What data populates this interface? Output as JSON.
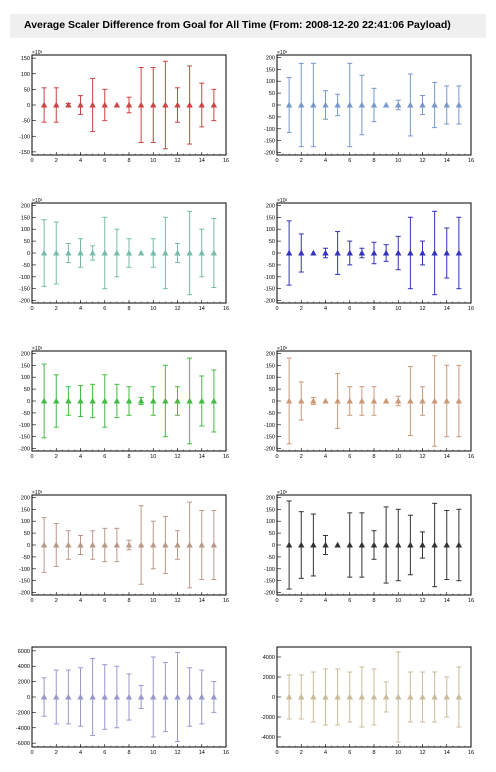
{
  "title": "Average Scaler Difference from Goal for All Time (From: 2008-12-20 22:41:06 Payload)",
  "chart_data": [
    {
      "type": "scatter",
      "color": "#cc4444",
      "exponent": "×10³",
      "xlim": [
        0,
        16
      ],
      "ylim": [
        -160,
        160
      ],
      "xticks": [
        0,
        2,
        4,
        6,
        8,
        10,
        12,
        14,
        16
      ],
      "yticks": [
        -150,
        -100,
        -50,
        0,
        50,
        100,
        150
      ],
      "x": [
        1,
        2,
        3,
        4,
        5,
        6,
        7,
        8,
        9,
        10,
        11,
        12,
        13,
        14,
        15
      ],
      "y": [
        0,
        0,
        0,
        0,
        0,
        0,
        0,
        0,
        0,
        0,
        0,
        0,
        0,
        0,
        0
      ],
      "err": [
        55,
        55,
        5,
        30,
        85,
        50,
        0,
        25,
        120,
        120,
        140,
        55,
        125,
        70,
        50
      ]
    },
    {
      "type": "scatter",
      "color": "#7799cc",
      "exponent": "×10³",
      "xlim": [
        0,
        16
      ],
      "ylim": [
        -210,
        210
      ],
      "xticks": [
        0,
        2,
        4,
        6,
        8,
        10,
        12,
        14,
        16
      ],
      "yticks": [
        -200,
        -150,
        -100,
        -50,
        0,
        50,
        100,
        150,
        200
      ],
      "x": [
        1,
        2,
        3,
        4,
        5,
        6,
        7,
        8,
        9,
        10,
        11,
        12,
        13,
        14,
        15
      ],
      "y": [
        0,
        0,
        0,
        0,
        0,
        0,
        0,
        0,
        0,
        0,
        0,
        0,
        0,
        0,
        0
      ],
      "err": [
        115,
        175,
        175,
        60,
        45,
        175,
        125,
        70,
        0,
        20,
        130,
        40,
        95,
        80,
        80
      ]
    },
    {
      "type": "scatter",
      "color": "#77bbaa",
      "exponent": "×10³",
      "xlim": [
        0,
        16
      ],
      "ylim": [
        -210,
        210
      ],
      "xticks": [
        0,
        2,
        4,
        6,
        8,
        10,
        12,
        14,
        16
      ],
      "yticks": [
        -200,
        -150,
        -100,
        -50,
        0,
        50,
        100,
        150,
        200
      ],
      "x": [
        1,
        2,
        3,
        4,
        5,
        6,
        7,
        8,
        9,
        10,
        11,
        12,
        13,
        14,
        15
      ],
      "y": [
        0,
        0,
        0,
        0,
        0,
        0,
        0,
        0,
        0,
        0,
        0,
        0,
        0,
        0,
        0
      ],
      "err": [
        140,
        130,
        40,
        60,
        30,
        150,
        100,
        60,
        0,
        60,
        150,
        40,
        175,
        100,
        145
      ]
    },
    {
      "type": "scatter",
      "color": "#3333bb",
      "exponent": "×10³",
      "xlim": [
        0,
        16
      ],
      "ylim": [
        -210,
        210
      ],
      "xticks": [
        0,
        2,
        4,
        6,
        8,
        10,
        12,
        14,
        16
      ],
      "yticks": [
        -200,
        -150,
        -100,
        -50,
        0,
        50,
        100,
        150,
        200
      ],
      "x": [
        1,
        2,
        3,
        4,
        5,
        6,
        7,
        8,
        9,
        10,
        11,
        12,
        13,
        14,
        15
      ],
      "y": [
        0,
        0,
        0,
        0,
        0,
        0,
        0,
        0,
        0,
        0,
        0,
        0,
        0,
        0,
        0
      ],
      "err": [
        135,
        80,
        0,
        20,
        90,
        50,
        20,
        45,
        35,
        70,
        150,
        50,
        175,
        105,
        150
      ]
    },
    {
      "type": "scatter",
      "color": "#44bb44",
      "exponent": "×10³",
      "xlim": [
        0,
        16
      ],
      "ylim": [
        -210,
        210
      ],
      "xticks": [
        0,
        2,
        4,
        6,
        8,
        10,
        12,
        14,
        16
      ],
      "yticks": [
        -200,
        -150,
        -100,
        -50,
        0,
        50,
        100,
        150,
        200
      ],
      "x": [
        1,
        2,
        3,
        4,
        5,
        6,
        7,
        8,
        9,
        10,
        11,
        12,
        13,
        14,
        15
      ],
      "y": [
        0,
        0,
        0,
        0,
        0,
        0,
        0,
        0,
        0,
        0,
        0,
        0,
        0,
        0,
        0
      ],
      "err": [
        155,
        110,
        60,
        65,
        70,
        110,
        70,
        60,
        15,
        60,
        150,
        60,
        180,
        105,
        130
      ]
    },
    {
      "type": "scatter",
      "color": "#cc9977",
      "exponent": "×10³",
      "xlim": [
        0,
        16
      ],
      "ylim": [
        -210,
        210
      ],
      "xticks": [
        0,
        2,
        4,
        6,
        8,
        10,
        12,
        14,
        16
      ],
      "yticks": [
        -200,
        -150,
        -100,
        -50,
        0,
        50,
        100,
        150,
        200
      ],
      "x": [
        1,
        2,
        3,
        4,
        5,
        6,
        7,
        8,
        9,
        10,
        11,
        12,
        13,
        14,
        15
      ],
      "y": [
        0,
        0,
        0,
        0,
        0,
        0,
        0,
        0,
        0,
        0,
        0,
        0,
        0,
        0,
        0
      ],
      "err": [
        180,
        80,
        15,
        0,
        115,
        60,
        60,
        60,
        0,
        20,
        145,
        60,
        190,
        150,
        150
      ]
    },
    {
      "type": "scatter",
      "color": "#bb9988",
      "exponent": "×10³",
      "xlim": [
        0,
        16
      ],
      "ylim": [
        -210,
        210
      ],
      "xticks": [
        0,
        2,
        4,
        6,
        8,
        10,
        12,
        14,
        16
      ],
      "yticks": [
        -200,
        -150,
        -100,
        -50,
        0,
        50,
        100,
        150,
        200
      ],
      "x": [
        1,
        2,
        3,
        4,
        5,
        6,
        7,
        8,
        9,
        10,
        11,
        12,
        13,
        14,
        15
      ],
      "y": [
        0,
        0,
        0,
        0,
        0,
        0,
        0,
        0,
        0,
        0,
        0,
        0,
        0,
        0,
        0
      ],
      "err": [
        115,
        90,
        60,
        40,
        60,
        70,
        70,
        20,
        165,
        100,
        120,
        60,
        180,
        145,
        145
      ]
    },
    {
      "type": "scatter",
      "color": "#333333",
      "exponent": "×10³",
      "xlim": [
        0,
        16
      ],
      "ylim": [
        -210,
        210
      ],
      "xticks": [
        0,
        2,
        4,
        6,
        8,
        10,
        12,
        14,
        16
      ],
      "yticks": [
        -200,
        -150,
        -100,
        -50,
        0,
        50,
        100,
        150,
        200
      ],
      "x": [
        1,
        2,
        3,
        4,
        5,
        6,
        7,
        8,
        9,
        10,
        11,
        12,
        13,
        14,
        15
      ],
      "y": [
        0,
        0,
        0,
        0,
        0,
        0,
        0,
        0,
        0,
        0,
        0,
        0,
        0,
        0,
        0
      ],
      "err": [
        185,
        140,
        130,
        40,
        0,
        135,
        135,
        60,
        160,
        150,
        125,
        55,
        175,
        145,
        150
      ]
    },
    {
      "type": "scatter",
      "color": "#9999cc",
      "exponent": "",
      "xlim": [
        0,
        16
      ],
      "ylim": [
        -6500,
        6500
      ],
      "xticks": [
        0,
        2,
        4,
        6,
        8,
        10,
        12,
        14,
        16
      ],
      "yticks": [
        -6000,
        -4000,
        -2000,
        0,
        2000,
        4000,
        6000
      ],
      "x": [
        1,
        2,
        3,
        4,
        5,
        6,
        7,
        8,
        9,
        10,
        11,
        12,
        13,
        14,
        15
      ],
      "y": [
        0,
        0,
        0,
        0,
        0,
        0,
        0,
        0,
        0,
        0,
        0,
        0,
        0,
        0,
        0
      ],
      "err": [
        2500,
        3500,
        3500,
        3800,
        5000,
        4200,
        4000,
        3000,
        1500,
        5200,
        4500,
        5800,
        3800,
        3500,
        2000
      ]
    },
    {
      "type": "scatter",
      "color": "#ccbb99",
      "exponent": "",
      "xlim": [
        0,
        16
      ],
      "ylim": [
        -5000,
        5000
      ],
      "xticks": [
        0,
        2,
        4,
        6,
        8,
        10,
        12,
        14,
        16
      ],
      "yticks": [
        -4000,
        -2000,
        0,
        2000,
        4000
      ],
      "x": [
        1,
        2,
        3,
        4,
        5,
        6,
        7,
        8,
        9,
        10,
        11,
        12,
        13,
        14,
        15
      ],
      "y": [
        0,
        0,
        0,
        0,
        0,
        0,
        0,
        0,
        0,
        0,
        0,
        0,
        0,
        0,
        0
      ],
      "err": [
        2200,
        2200,
        2500,
        2800,
        2800,
        2500,
        3000,
        2800,
        1500,
        4500,
        2500,
        2500,
        2500,
        2000,
        3000
      ]
    }
  ]
}
